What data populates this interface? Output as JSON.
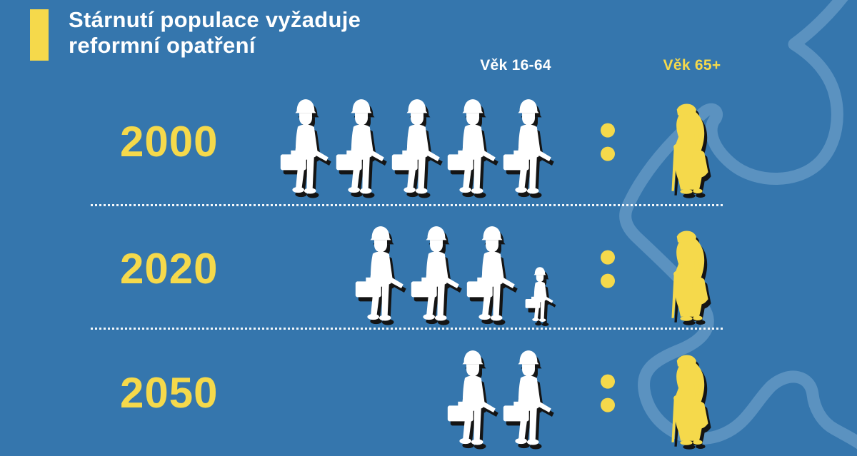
{
  "theme": {
    "background": "#3576ad",
    "accent_yellow": "#f5d94b",
    "figure_white": "#ffffff",
    "figure_shadow": "#141414",
    "puzzle_line_blue": "#5b92c0"
  },
  "header": {
    "title_line1": "Stárnutí populace vyžaduje",
    "title_line2": "reformní opatření"
  },
  "columns": {
    "workers_label": "Věk 16-64",
    "elderly_label": "Věk 65+"
  },
  "icons": {
    "worker": "construction-worker-silhouette",
    "elderly": "elderly-person-with-cane-and-bag-silhouette",
    "ratio_separator": "colon-dots",
    "background_decoration": "puzzle-piece-outline"
  },
  "chart_data": {
    "type": "pictograph",
    "title": "Stárnutí populace vyžaduje reformní opatření",
    "legend": [
      {
        "label": "Věk 16-64",
        "color": "#ffffff"
      },
      {
        "label": "Věk 65+",
        "color": "#f5d94b"
      }
    ],
    "rows": [
      {
        "year": "2000",
        "workers_full": 5,
        "workers_small": 0,
        "elderly": 1
      },
      {
        "year": "2020",
        "workers_full": 3,
        "workers_small": 1,
        "elderly": 1
      },
      {
        "year": "2050",
        "workers_full": 2,
        "workers_small": 0,
        "elderly": 1
      }
    ]
  }
}
